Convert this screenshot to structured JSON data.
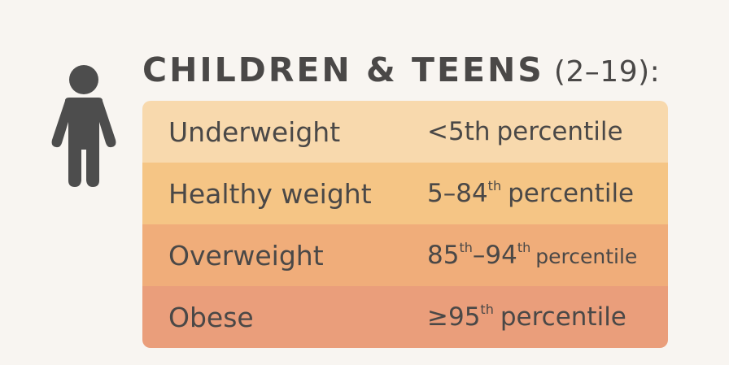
{
  "header": {
    "title": "CHILDREN & TEENS",
    "age_range": "(2–19):"
  },
  "icon": "child-person-icon",
  "categories": [
    {
      "label": "Underweight",
      "range_prefix": "<5th",
      "range_sup": "",
      "range_middle": "",
      "range_sup2": "",
      "range_word": "percentile",
      "color": "#f8d9ad"
    },
    {
      "label": "Healthy weight",
      "range_prefix": "5–84",
      "range_sup": "th",
      "range_middle": "",
      "range_sup2": "",
      "range_word": "percentile",
      "color": "#f5c585"
    },
    {
      "label": "Overweight",
      "range_prefix": "85",
      "range_sup": "th",
      "range_middle": "–94",
      "range_sup2": "th",
      "range_word": "percentile",
      "color": "#f0ad7a"
    },
    {
      "label": "Obese",
      "range_prefix": "≥95",
      "range_sup": "th",
      "range_middle": "",
      "range_sup2": "",
      "range_word": "percentile",
      "color": "#ea9e7b"
    }
  ]
}
